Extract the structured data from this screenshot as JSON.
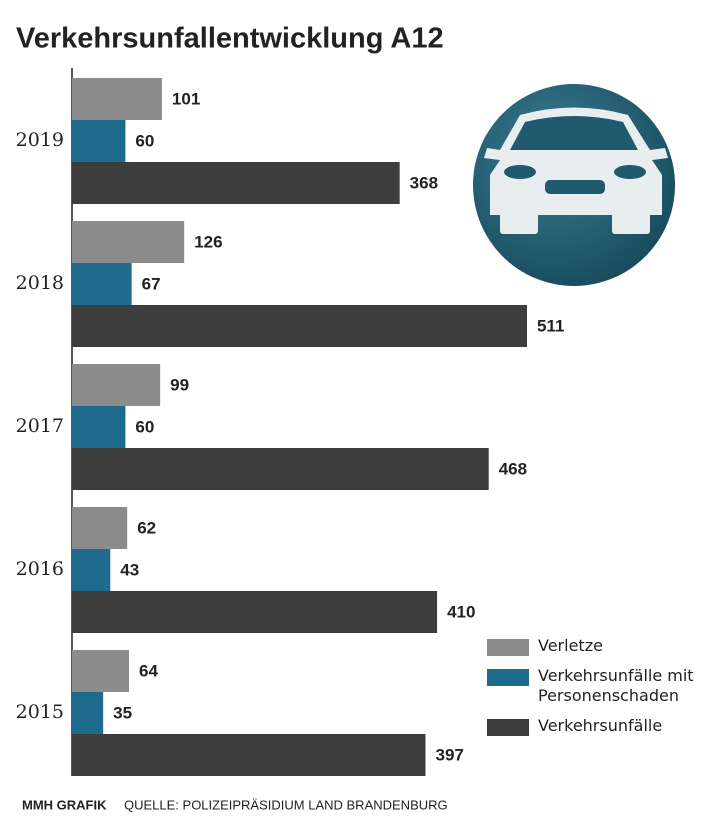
{
  "chart_data": {
    "type": "bar",
    "orientation": "horizontal",
    "title": "Verkehrsunfallentwicklung A12",
    "categories": [
      "2019",
      "2018",
      "2017",
      "2016",
      "2015"
    ],
    "series": [
      {
        "name": "Verletze",
        "color": "#8c8c8c",
        "values": [
          101,
          126,
          99,
          62,
          64
        ]
      },
      {
        "name": "Verkehrsunfälle mit Personenschaden",
        "color": "#1f6b8e",
        "values": [
          60,
          67,
          60,
          43,
          35
        ]
      },
      {
        "name": "Verkehrsunfälle",
        "color": "#3d3d3d",
        "values": [
          368,
          511,
          468,
          410,
          397
        ]
      }
    ],
    "source_credit": "MMH GRAFIK",
    "source": "QUELLE: POLIZEIPRÄSIDIUM LAND BRANDENBURG"
  }
}
